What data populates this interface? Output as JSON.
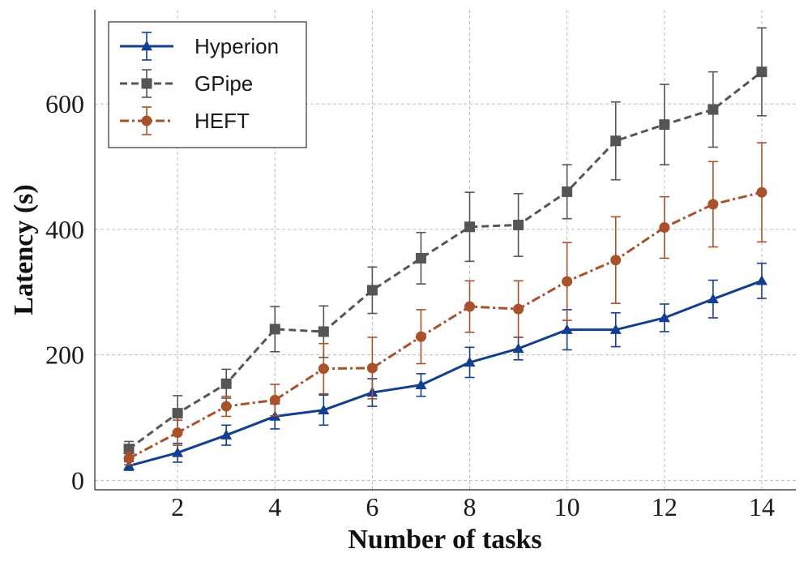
{
  "chart_data": {
    "type": "line",
    "title": "",
    "xlabel": "Number of tasks",
    "ylabel": "Latency (s)",
    "xlim": [
      0.3,
      14.7
    ],
    "ylim": [
      -15,
      750
    ],
    "xticks": [
      2,
      4,
      6,
      8,
      10,
      12,
      14
    ],
    "yticks": [
      0,
      200,
      400,
      600
    ],
    "grid": true,
    "legend_position": "top-left",
    "x": [
      1,
      2,
      3,
      4,
      5,
      6,
      7,
      8,
      9,
      10,
      11,
      12,
      13,
      14
    ],
    "series": [
      {
        "name": "Hyperion",
        "color": "#123f8f",
        "marker": "triangle",
        "linestyle": "solid",
        "values": [
          23,
          44,
          72,
          102,
          112,
          140,
          152,
          188,
          210,
          240,
          240,
          259,
          289,
          318
        ],
        "errors": [
          7,
          15,
          16,
          20,
          24,
          22,
          18,
          24,
          18,
          32,
          27,
          22,
          30,
          28
        ]
      },
      {
        "name": "GPipe",
        "color": "#555555",
        "marker": "square",
        "linestyle": "dashed",
        "values": [
          50,
          107,
          154,
          241,
          237,
          303,
          354,
          404,
          407,
          460,
          541,
          567,
          591,
          651
        ],
        "errors": [
          12,
          28,
          23,
          36,
          41,
          37,
          41,
          55,
          50,
          43,
          62,
          64,
          60,
          70
        ]
      },
      {
        "name": "HEFT",
        "color": "#a9512b",
        "marker": "circle",
        "linestyle": "dashdot",
        "values": [
          35,
          76,
          118,
          128,
          178,
          179,
          229,
          277,
          273,
          317,
          351,
          403,
          440,
          459
        ],
        "errors": [
          10,
          20,
          16,
          25,
          40,
          49,
          43,
          41,
          45,
          62,
          69,
          49,
          68,
          79
        ]
      }
    ]
  }
}
